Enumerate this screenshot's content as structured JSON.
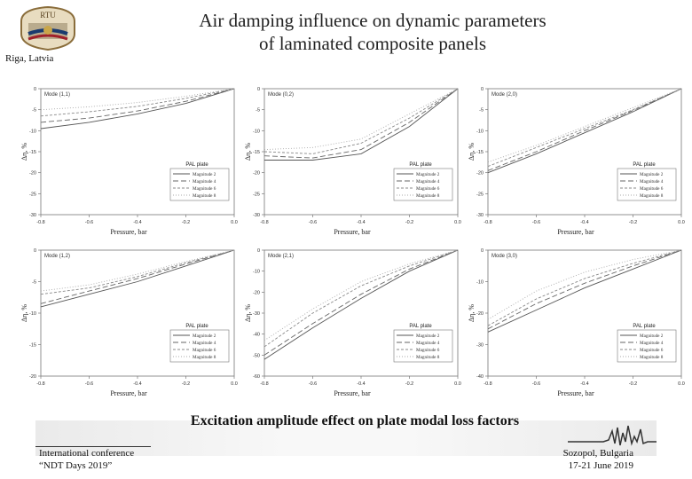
{
  "header": {
    "logo_text": "RTU",
    "location": "Riga, Latvia",
    "title_line1": "Air damping influence on dynamic parameters",
    "title_line2": "of laminated composite panels"
  },
  "caption": "Excitation amplitude effect on plate modal loss factors",
  "footer": {
    "conference_line1": "International conference",
    "conference_line2": "“NDT Days 2019”",
    "place_line1": "Sozopol, Bulgaria",
    "place_line2": "17-21 June 2019"
  },
  "chart_data": [
    {
      "type": "line",
      "mode": "Mode (1,1)",
      "legend_title": "PAL plate",
      "ylabel": "Δη, %",
      "xlabel": "Pressure, bar",
      "x": [
        -0.8,
        -0.6,
        -0.4,
        -0.2,
        0.0
      ],
      "x_ticks": [
        "-0.8",
        "-0.6",
        "-0.4",
        "-0.2",
        "0.0"
      ],
      "ylim": [
        -30,
        0
      ],
      "y_ticks": [
        "0",
        "-5",
        "-10",
        "-15",
        "-20",
        "-25",
        "-30"
      ],
      "series": [
        {
          "name": "Magnitude 2",
          "values": [
            -9.5,
            -8.0,
            -6.0,
            -3.5,
            0
          ]
        },
        {
          "name": "Magnitude 4",
          "values": [
            -8.0,
            -7.0,
            -5.3,
            -3.0,
            0
          ]
        },
        {
          "name": "Magnitude 6",
          "values": [
            -6.5,
            -5.5,
            -4.2,
            -2.3,
            0
          ]
        },
        {
          "name": "Magnitude 8",
          "values": [
            -5.0,
            -4.3,
            -3.3,
            -1.8,
            0
          ]
        }
      ]
    },
    {
      "type": "line",
      "mode": "Mode (0,2)",
      "legend_title": "PAL plate",
      "ylabel": "Δη, %",
      "xlabel": "Pressure, bar",
      "x": [
        -0.8,
        -0.6,
        -0.4,
        -0.2,
        0.0
      ],
      "x_ticks": [
        "-0.8",
        "-0.6",
        "-0.4",
        "-0.2",
        "0.0"
      ],
      "ylim": [
        -30,
        0
      ],
      "y_ticks": [
        "0",
        "-5",
        "-10",
        "-15",
        "-20",
        "-25",
        "-30"
      ],
      "series": [
        {
          "name": "Magnitude 2",
          "values": [
            -17.0,
            -17.0,
            -15.5,
            -9.0,
            0
          ]
        },
        {
          "name": "Magnitude 4",
          "values": [
            -16.0,
            -16.5,
            -14.5,
            -8.0,
            0
          ]
        },
        {
          "name": "Magnitude 6",
          "values": [
            -15.0,
            -15.5,
            -13.0,
            -7.0,
            0
          ]
        },
        {
          "name": "Magnitude 8",
          "values": [
            -14.5,
            -14.0,
            -12.0,
            -6.0,
            0
          ]
        }
      ]
    },
    {
      "type": "line",
      "mode": "Mode (2,0)",
      "legend_title": "PAL plate",
      "ylabel": "Δη, %",
      "xlabel": "Pressure, bar",
      "x": [
        -0.8,
        -0.6,
        -0.4,
        -0.2,
        0.0
      ],
      "x_ticks": [
        "-0.8",
        "-0.6",
        "-0.4",
        "-0.2",
        "0.0"
      ],
      "ylim": [
        -30,
        0
      ],
      "y_ticks": [
        "0",
        "-5",
        "-10",
        "-15",
        "-20",
        "-25",
        "-30"
      ],
      "series": [
        {
          "name": "Magnitude 2",
          "values": [
            -20.0,
            -15.5,
            -10.5,
            -5.5,
            0
          ]
        },
        {
          "name": "Magnitude 4",
          "values": [
            -19.5,
            -15.0,
            -10.0,
            -5.2,
            0
          ]
        },
        {
          "name": "Magnitude 6",
          "values": [
            -18.5,
            -14.0,
            -9.5,
            -5.0,
            0
          ]
        },
        {
          "name": "Magnitude 8",
          "values": [
            -17.5,
            -13.5,
            -9.0,
            -4.5,
            0
          ]
        }
      ]
    },
    {
      "type": "line",
      "mode": "Mode (1,2)",
      "legend_title": "PAL plate",
      "ylabel": "Δη, %",
      "xlabel": "Pressure, bar",
      "x": [
        -0.8,
        -0.6,
        -0.4,
        -0.2,
        0.0
      ],
      "x_ticks": [
        "-0.8",
        "-0.6",
        "-0.4",
        "-0.2",
        "0.0"
      ],
      "ylim": [
        -20,
        0
      ],
      "y_ticks": [
        "0",
        "-5",
        "-10",
        "-15",
        "-20"
      ],
      "series": [
        {
          "name": "Magnitude 2",
          "values": [
            -9.0,
            -7.0,
            -5.0,
            -2.5,
            0
          ]
        },
        {
          "name": "Magnitude 4",
          "values": [
            -8.5,
            -6.5,
            -4.5,
            -2.2,
            0
          ]
        },
        {
          "name": "Magnitude 6",
          "values": [
            -7.0,
            -6.0,
            -4.2,
            -2.0,
            0
          ]
        },
        {
          "name": "Magnitude 8",
          "values": [
            -6.5,
            -5.5,
            -3.8,
            -1.8,
            0
          ]
        }
      ]
    },
    {
      "type": "line",
      "mode": "Mode (2,1)",
      "legend_title": "PAL plate",
      "ylabel": "Δη, %",
      "xlabel": "Pressure, bar",
      "x": [
        -0.8,
        -0.6,
        -0.4,
        -0.2,
        0.0
      ],
      "x_ticks": [
        "-0.8",
        "-0.6",
        "-0.4",
        "-0.2",
        "0.0"
      ],
      "ylim": [
        -60,
        0
      ],
      "y_ticks": [
        "0",
        "-10",
        "-20",
        "-30",
        "-40",
        "-50",
        "-60"
      ],
      "series": [
        {
          "name": "Magnitude 2",
          "values": [
            -52.0,
            -37.0,
            -23.0,
            -10.0,
            0
          ]
        },
        {
          "name": "Magnitude 4",
          "values": [
            -50.0,
            -35.0,
            -21.0,
            -9.0,
            0
          ]
        },
        {
          "name": "Magnitude 6",
          "values": [
            -46.0,
            -30.0,
            -17.0,
            -7.5,
            0
          ]
        },
        {
          "name": "Magnitude 8",
          "values": [
            -43.0,
            -28.0,
            -15.0,
            -6.5,
            0
          ]
        }
      ]
    },
    {
      "type": "line",
      "mode": "Mode (3,0)",
      "legend_title": "PAL plate",
      "ylabel": "Δη, %",
      "xlabel": "Pressure, bar",
      "x": [
        -0.8,
        -0.6,
        -0.4,
        -0.2,
        0.0
      ],
      "x_ticks": [
        "-0.8",
        "-0.6",
        "-0.4",
        "-0.2",
        "0.0"
      ],
      "ylim": [
        -40,
        0
      ],
      "y_ticks": [
        "0",
        "-10",
        "-20",
        "-30",
        "-40"
      ],
      "series": [
        {
          "name": "Magnitude 2",
          "values": [
            -26.0,
            -19.0,
            -12.0,
            -6.0,
            0
          ]
        },
        {
          "name": "Magnitude 4",
          "values": [
            -25.0,
            -17.0,
            -10.5,
            -5.0,
            0
          ]
        },
        {
          "name": "Magnitude 6",
          "values": [
            -24.0,
            -15.5,
            -9.0,
            -4.2,
            0
          ]
        },
        {
          "name": "Magnitude 8",
          "values": [
            -22.0,
            -13.0,
            -7.0,
            -3.0,
            0
          ]
        }
      ]
    }
  ]
}
